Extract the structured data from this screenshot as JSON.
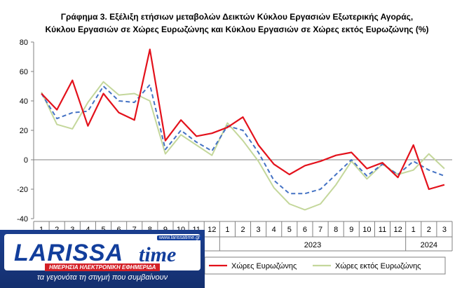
{
  "chart_data": {
    "type": "line",
    "title": "Γράφημα 3. Εξέλιξη  ετήσιων μεταβολών Δεικτών Κύκλου Εργασιών Εξωτερικής Αγοράς,",
    "subtitle": "Κύκλου Εργασιών σε Χώρες Ευρωζώνης και Κύκλου Εργασιών σε Χώρες εκτός Ευρωζώνης (%)",
    "xlabel": "",
    "ylabel": "",
    "ylim": [
      -40,
      80
    ],
    "yticks": [
      -40,
      -20,
      0,
      20,
      40,
      60,
      80
    ],
    "grid": false,
    "categories": [
      "1",
      "2",
      "3",
      "4",
      "5",
      "6",
      "7",
      "8",
      "9",
      "10",
      "11",
      "12",
      "1",
      "2",
      "3",
      "4",
      "5",
      "6",
      "7",
      "8",
      "9",
      "10",
      "11",
      "12",
      "1",
      "2",
      "3"
    ],
    "year_labels": [
      "",
      "2023",
      "2024"
    ],
    "series": [
      {
        "name": "",
        "color": "#4472c4",
        "style": "dashed",
        "values": [
          45,
          28,
          32,
          33,
          50,
          40,
          39,
          51,
          7,
          20,
          12,
          6,
          23,
          20,
          5,
          -14,
          -23,
          -23,
          -20,
          -10,
          0,
          -11,
          -3,
          -10,
          -1,
          -7,
          -11
        ]
      },
      {
        "name": "Χώρες Ευρωζώνης",
        "color": "#e3111b",
        "style": "solid",
        "values": [
          45,
          34,
          54,
          23,
          45,
          32,
          27,
          75,
          13,
          27,
          16,
          18,
          22,
          29,
          10,
          -3,
          -10,
          -4,
          -1,
          3,
          5,
          -6,
          -2,
          -12,
          10,
          -20,
          -17
        ]
      },
      {
        "name": "Χώρες εκτός Ευρωζώνης",
        "color": "#c4d79b",
        "style": "solid",
        "values": [
          46,
          24,
          21,
          39,
          53,
          44,
          45,
          40,
          4,
          17,
          10,
          3,
          25,
          13,
          -1,
          -19,
          -30,
          -34,
          -30,
          -17,
          -1,
          -13,
          -3,
          -10,
          -7,
          4,
          -6
        ]
      }
    ]
  },
  "branding": {
    "logo_word": "LARISSA",
    "logo_time": "time",
    "logo_site": "www.larissatime.gr",
    "logo_strip": "ΗΜΕΡΗΣΙΑ ΗΛΕΚΤΡΟΝΙΚΗ ΕΦΗΜΕΡΙΔΑ",
    "slogan": "τα γεγονότα τη στιγμή που συμβαίνουν"
  },
  "colors": {
    "axis": "#808080",
    "logo_blue": "#123e9c",
    "logo_red": "#d42027"
  }
}
